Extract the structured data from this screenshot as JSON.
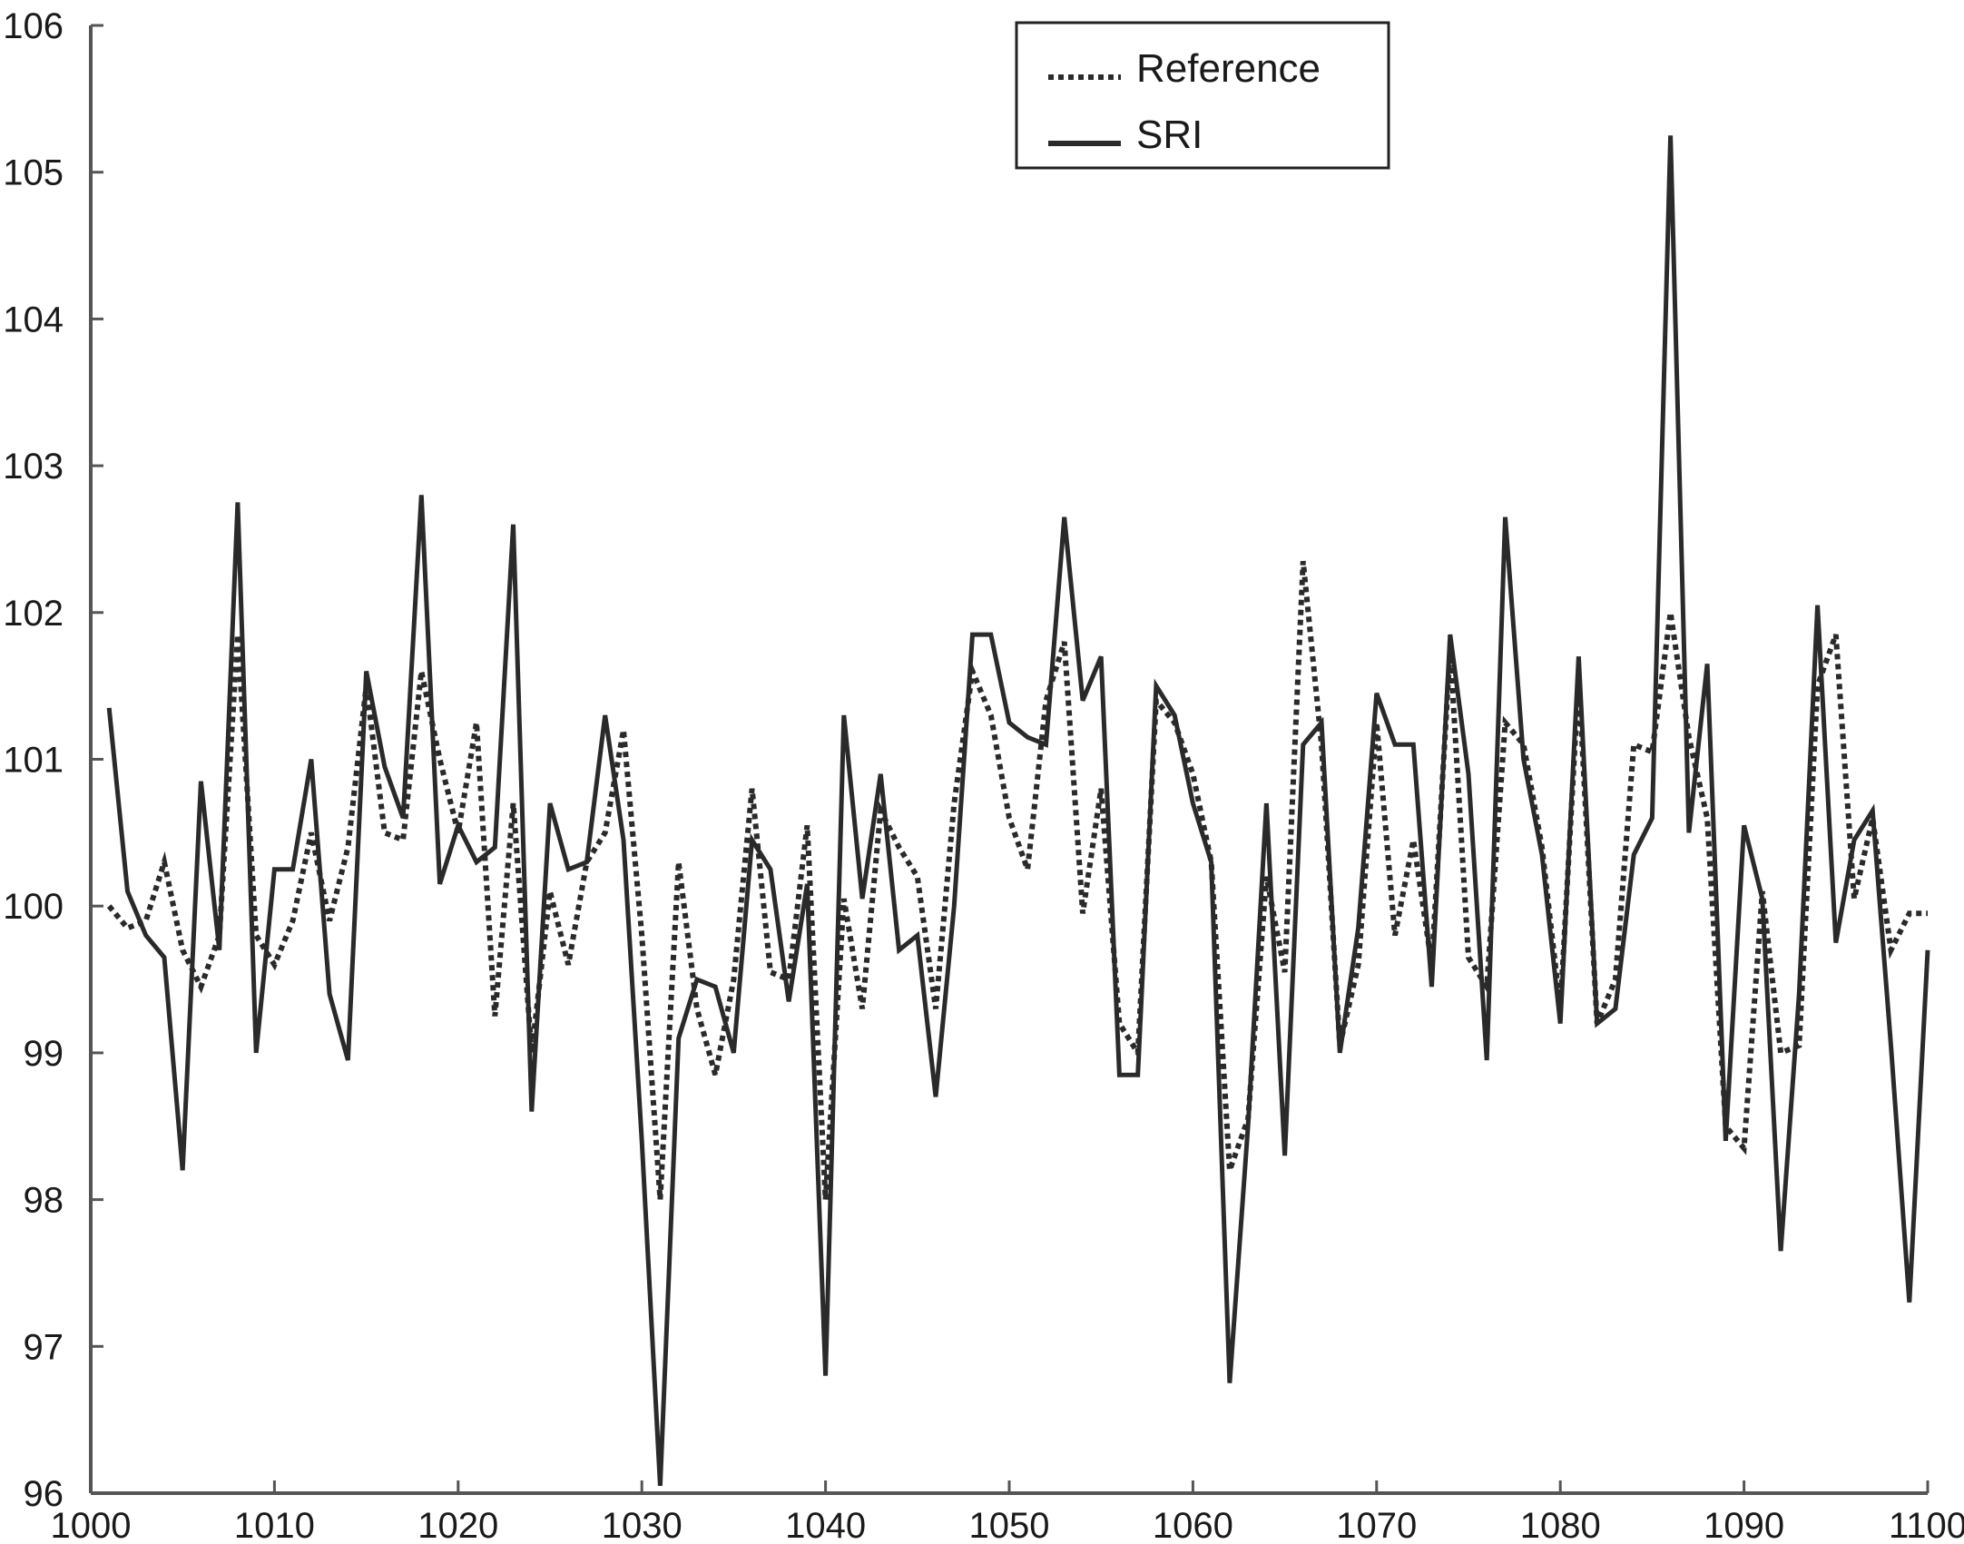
{
  "chart_data": {
    "type": "line",
    "xlim": [
      1000,
      1100
    ],
    "ylim": [
      96,
      106
    ],
    "x_ticks": [
      1000,
      1010,
      1020,
      1030,
      1040,
      1050,
      1060,
      1070,
      1080,
      1090,
      1100
    ],
    "y_ticks": [
      96,
      97,
      98,
      99,
      100,
      101,
      102,
      103,
      104,
      105,
      106
    ],
    "grid": false,
    "legend_position": "top-right",
    "x": [
      1001,
      1002,
      1003,
      1004,
      1005,
      1006,
      1007,
      1008,
      1009,
      1010,
      1011,
      1012,
      1013,
      1014,
      1015,
      1016,
      1017,
      1018,
      1019,
      1020,
      1021,
      1022,
      1023,
      1024,
      1025,
      1026,
      1027,
      1028,
      1029,
      1030,
      1031,
      1032,
      1033,
      1034,
      1035,
      1036,
      1037,
      1038,
      1039,
      1040,
      1041,
      1042,
      1043,
      1044,
      1045,
      1046,
      1047,
      1048,
      1049,
      1050,
      1051,
      1052,
      1053,
      1054,
      1055,
      1056,
      1057,
      1058,
      1059,
      1060,
      1061,
      1062,
      1063,
      1064,
      1065,
      1066,
      1067,
      1068,
      1069,
      1070,
      1071,
      1072,
      1073,
      1074,
      1075,
      1076,
      1077,
      1078,
      1079,
      1080,
      1081,
      1082,
      1083,
      1084,
      1085,
      1086,
      1087,
      1088,
      1089,
      1090,
      1091,
      1092,
      1093,
      1094,
      1095,
      1096,
      1097,
      1098,
      1099,
      1100
    ],
    "series": [
      {
        "name": "Reference",
        "style": "dotted",
        "color": "#2a2a2a",
        "values": [
          100.0,
          99.85,
          99.9,
          100.3,
          99.7,
          99.45,
          99.8,
          101.85,
          99.8,
          99.6,
          99.9,
          100.5,
          99.9,
          100.4,
          101.5,
          100.5,
          100.45,
          101.6,
          101.0,
          100.5,
          101.25,
          99.25,
          100.7,
          99.0,
          100.1,
          99.6,
          100.3,
          100.5,
          101.2,
          99.8,
          98.0,
          100.3,
          99.3,
          98.85,
          99.5,
          100.8,
          99.55,
          99.5,
          100.55,
          98.0,
          100.05,
          99.3,
          100.65,
          100.4,
          100.2,
          99.3,
          100.7,
          101.6,
          101.3,
          100.6,
          100.25,
          101.4,
          101.8,
          99.95,
          100.8,
          99.2,
          99.0,
          101.4,
          101.25,
          100.9,
          100.3,
          98.2,
          98.55,
          100.2,
          99.55,
          102.35,
          101.1,
          99.05,
          99.6,
          101.25,
          99.8,
          100.45,
          99.6,
          101.75,
          99.65,
          99.45,
          101.25,
          101.1,
          100.4,
          99.3,
          101.55,
          99.2,
          99.5,
          101.1,
          101.05,
          102.0,
          101.15,
          100.6,
          98.5,
          98.35,
          100.1,
          99.0,
          99.05,
          101.5,
          101.85,
          100.05,
          100.6,
          99.7,
          99.95,
          99.95
        ]
      },
      {
        "name": "SRI",
        "style": "solid",
        "color": "#2a2a2a",
        "values": [
          101.35,
          100.1,
          99.8,
          99.65,
          98.2,
          100.85,
          99.7,
          102.75,
          99.0,
          100.25,
          100.25,
          101.0,
          99.4,
          98.95,
          101.6,
          100.95,
          100.6,
          102.8,
          100.15,
          100.55,
          100.3,
          100.4,
          102.6,
          98.6,
          100.7,
          100.25,
          100.3,
          101.3,
          100.45,
          98.4,
          96.05,
          99.1,
          99.5,
          99.45,
          99.0,
          100.45,
          100.25,
          99.35,
          100.15,
          96.8,
          101.3,
          100.05,
          100.9,
          99.7,
          99.8,
          98.7,
          100.0,
          101.85,
          101.85,
          101.25,
          101.15,
          101.1,
          102.65,
          101.4,
          101.7,
          98.85,
          98.85,
          101.5,
          101.3,
          100.7,
          100.3,
          96.75,
          98.5,
          100.7,
          98.3,
          101.1,
          101.25,
          99.0,
          99.85,
          101.45,
          101.1,
          101.1,
          99.45,
          101.85,
          100.9,
          98.95,
          102.65,
          101.0,
          100.35,
          99.2,
          101.7,
          99.2,
          99.3,
          100.35,
          100.6,
          105.25,
          100.5,
          101.65,
          98.4,
          100.55,
          100.05,
          97.65,
          99.4,
          102.05,
          99.75,
          100.45,
          100.65,
          99.05,
          97.3,
          99.7
        ]
      }
    ]
  }
}
